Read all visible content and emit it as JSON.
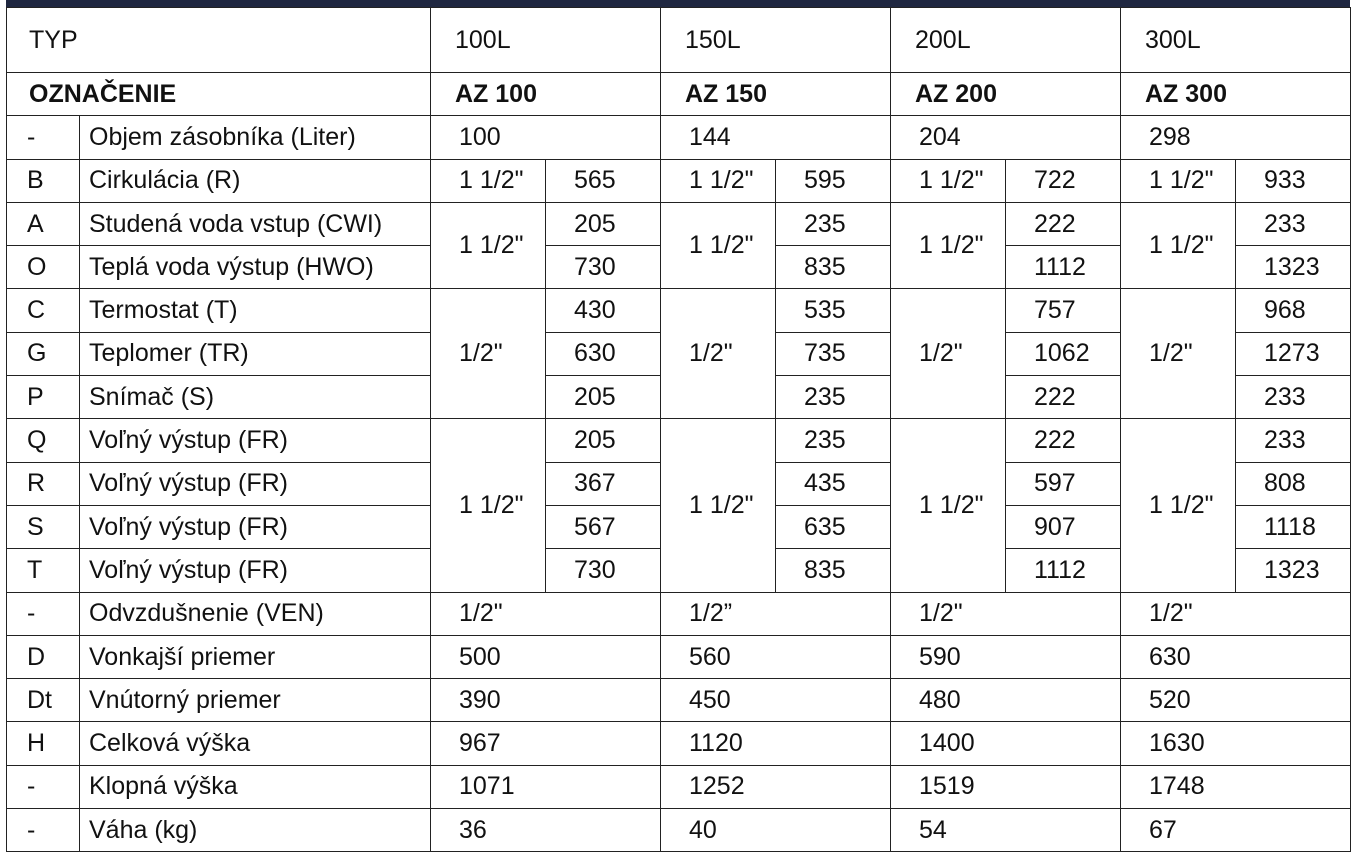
{
  "header": {
    "typ_label": "TYP",
    "types": [
      "100L",
      "150L",
      "200L",
      "300L"
    ]
  },
  "designation": {
    "label": "OZNAČENIE",
    "values": [
      "AZ 100",
      "AZ 150",
      "AZ 200",
      "AZ 300"
    ]
  },
  "rows": {
    "volume": {
      "code": "-",
      "label": "Objem zásobníka (Liter)",
      "values": [
        "100",
        "144",
        "204",
        "298"
      ]
    },
    "circulation": {
      "code": "B",
      "label": "Cirkulácia (R)",
      "sizes": [
        "1 1/2\"",
        "1 1/2\"",
        "1 1/2\"",
        "1 1/2\""
      ],
      "values": [
        "565",
        "595",
        "722",
        "933"
      ]
    },
    "cold_in": {
      "code": "A",
      "label": "Studená voda vstup (CWI)",
      "values": [
        "205",
        "235",
        "222",
        "233"
      ]
    },
    "hot_out": {
      "code": "O",
      "label": "Teplá voda výstup (HWO)",
      "values": [
        "730",
        "835",
        "1112",
        "1323"
      ]
    },
    "water_sizes": [
      "1 1/2\"",
      "1 1/2\"",
      "1 1/2\"",
      "1 1/2\""
    ],
    "thermostat": {
      "code": "C",
      "label": "Termostat (T)",
      "values": [
        "430",
        "535",
        "757",
        "968"
      ]
    },
    "thermometer": {
      "code": "G",
      "label": "Teplomer (TR)",
      "values": [
        "630",
        "735",
        "1062",
        "1273"
      ]
    },
    "sensor": {
      "code": "P",
      "label": "Snímač (S)",
      "values": [
        "205",
        "235",
        "222",
        "233"
      ]
    },
    "sensor_sizes": [
      "1/2\"",
      "1/2\"",
      "1/2\"",
      "1/2\""
    ],
    "free_q": {
      "code": "Q",
      "label": "Voľný výstup (FR)",
      "values": [
        "205",
        "235",
        "222",
        "233"
      ]
    },
    "free_r": {
      "code": "R",
      "label": "Voľný výstup (FR)",
      "values": [
        "367",
        "435",
        "597",
        "808"
      ]
    },
    "free_s": {
      "code": "S",
      "label": "Voľný výstup (FR)",
      "values": [
        "567",
        "635",
        "907",
        "1118"
      ]
    },
    "free_t": {
      "code": "T",
      "label": "Voľný výstup (FR)",
      "values": [
        "730",
        "835",
        "1112",
        "1323"
      ]
    },
    "free_sizes": [
      "1 1/2\"",
      "1 1/2\"",
      "1 1/2\"",
      "1 1/2\""
    ],
    "venting": {
      "code": "-",
      "label": "Odvzdušnenie (VEN)",
      "values": [
        "1/2\"",
        "1/2”",
        "1/2\"",
        "1/2\""
      ]
    },
    "outer_d": {
      "code": "D",
      "label": "Vonkajší priemer",
      "values": [
        "500",
        "560",
        "590",
        "630"
      ]
    },
    "inner_d": {
      "code": "Dt",
      "label": "Vnútorný priemer",
      "values": [
        "390",
        "450",
        "480",
        "520"
      ]
    },
    "height": {
      "code": "H",
      "label": "Celková výška",
      "values": [
        "967",
        "1120",
        "1400",
        "1630"
      ]
    },
    "tilt_height": {
      "code": "-",
      "label": "Klopná výška",
      "values": [
        "1071",
        "1252",
        "1519",
        "1748"
      ]
    },
    "weight": {
      "code": "-",
      "label": "Váha (kg)",
      "values": [
        "36",
        "40",
        "54",
        "67"
      ]
    }
  }
}
